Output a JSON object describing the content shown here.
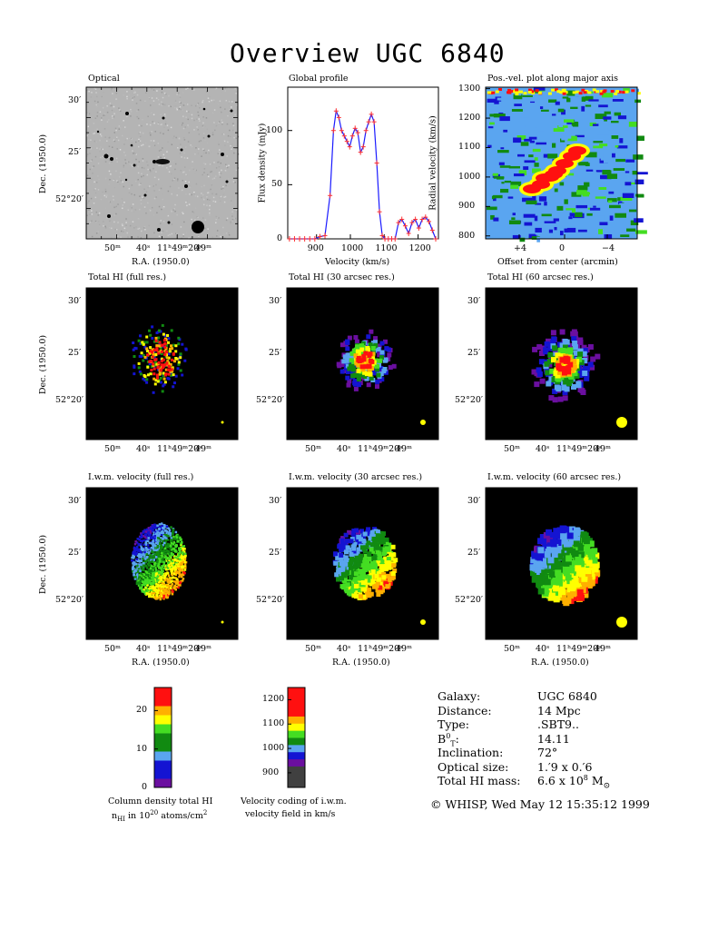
{
  "title": "Overview UGC 6840",
  "optical": {
    "panel_title": "Optical",
    "ylabel": "Dec. (1950.0)",
    "xlabel": "R.A. (1950.0)",
    "dec_ticks": [
      "30′",
      "25′",
      "52°20′"
    ],
    "ra_ticks": [
      "50ᵐ",
      "40ˢ",
      "11ʰ49ᵐ20ˢ",
      "49ᵐ"
    ]
  },
  "total_hi": [
    {
      "title": "Total HI (full res.)",
      "beam": "small"
    },
    {
      "title": "Total HI (30 arcsec res.)",
      "beam": "medium"
    },
    {
      "title": "Total HI (60 arcsec res.)",
      "beam": "large"
    }
  ],
  "iwm_velocity": [
    {
      "title": "I.w.m. velocity (full res.)",
      "beam": "small"
    },
    {
      "title": "I.w.m. velocity (30 arcsec res.)",
      "beam": "medium"
    },
    {
      "title": "I.w.m. velocity (60 arcsec res.)",
      "beam": "large"
    }
  ],
  "map_axes": {
    "ylabel": "Dec. (1950.0)",
    "xlabel": "R.A. (1950.0)",
    "dec_ticks": [
      "30′",
      "25′",
      "52°20′"
    ],
    "ra_ticks": [
      "50ᵐ",
      "40ˢ",
      "11ʰ49ᵐ20ˢ",
      "49ᵐ"
    ]
  },
  "chart_data": [
    {
      "type": "line",
      "title": "Global profile",
      "xlabel": "Velocity (km/s)",
      "ylabel": "Flux density (mJy)",
      "xlim": [
        815,
        1260
      ],
      "ylim": [
        0,
        140
      ],
      "xticks": [
        900,
        1000,
        1100,
        1200
      ],
      "yticks": [
        0,
        50,
        100
      ],
      "series": [
        {
          "x": [
            820,
            835,
            850,
            865,
            880,
            895,
            910,
            925,
            940,
            950,
            958,
            966,
            974,
            982,
            990,
            998,
            1006,
            1014,
            1022,
            1030,
            1038,
            1046,
            1054,
            1062,
            1070,
            1078,
            1086,
            1094,
            1102,
            1112,
            1122,
            1132,
            1142,
            1152,
            1162,
            1172,
            1182,
            1192,
            1202,
            1212,
            1222,
            1232,
            1242,
            1252
          ],
          "y": [
            0,
            0,
            0,
            0,
            0,
            0,
            2,
            3,
            40,
            100,
            118,
            112,
            100,
            95,
            90,
            85,
            95,
            102,
            98,
            80,
            85,
            100,
            108,
            115,
            108,
            70,
            25,
            3,
            0,
            0,
            0,
            0,
            15,
            18,
            12,
            5,
            15,
            18,
            10,
            18,
            20,
            16,
            8,
            0
          ]
        }
      ]
    },
    {
      "type": "heatmap",
      "title": "Pos.-vel. plot along major axis",
      "xlabel": "Offset from center (arcmin)",
      "ylabel": "Radial velocity (km/s)",
      "xticks": [
        "+4",
        "0",
        "−4"
      ],
      "yticks": [
        800,
        900,
        1000,
        1100,
        1200,
        1300
      ],
      "ylim": [
        790,
        1305
      ]
    },
    {
      "type": "heatmap",
      "title": "Column density total HI",
      "label_line2_prefix": "n",
      "label_line2_sub": "HI",
      "label_line2_mid": " in 10",
      "label_line2_sup": "20",
      "label_line2_end": " atoms/cm",
      "label_line2_sup2": "2",
      "ticks": [
        0,
        10,
        20
      ],
      "range": [
        0,
        26
      ]
    },
    {
      "type": "heatmap",
      "title": "Velocity coding of i.w.m.",
      "title_line2": "velocity field in km/s",
      "ticks": [
        900,
        1000,
        1100,
        1200
      ],
      "range": [
        840,
        1250
      ]
    }
  ],
  "info": {
    "rows": [
      {
        "label": "Galaxy:",
        "value": "UGC 6840"
      },
      {
        "label": "Distance:",
        "value": "14 Mpc"
      },
      {
        "label": "Type:",
        "value": ".SBT9.."
      },
      {
        "label": "B",
        "label_sup": "0",
        "label_sub": "T",
        "label_end": ":",
        "value": "14.11"
      },
      {
        "label": "Inclination:",
        "value": "72°"
      },
      {
        "label": "Optical size:",
        "value": "1.′9 x 0.′6"
      },
      {
        "label": "Total HI mass:",
        "value": "6.6 x 10",
        "value_sup": "8",
        "value_end": " M",
        "value_sub": "⊙"
      }
    ],
    "footer": "© WHISP, Wed May 12 15:35:12 1999"
  },
  "colors": {
    "purple": "#6b0fa0",
    "blue": "#1414d2",
    "lightblue": "#5aa5f0",
    "darkgreen": "#118a11",
    "green": "#44dd22",
    "yellow": "#ffff00",
    "orange": "#ffb000",
    "red": "#ff1010",
    "grey": "#404040"
  }
}
